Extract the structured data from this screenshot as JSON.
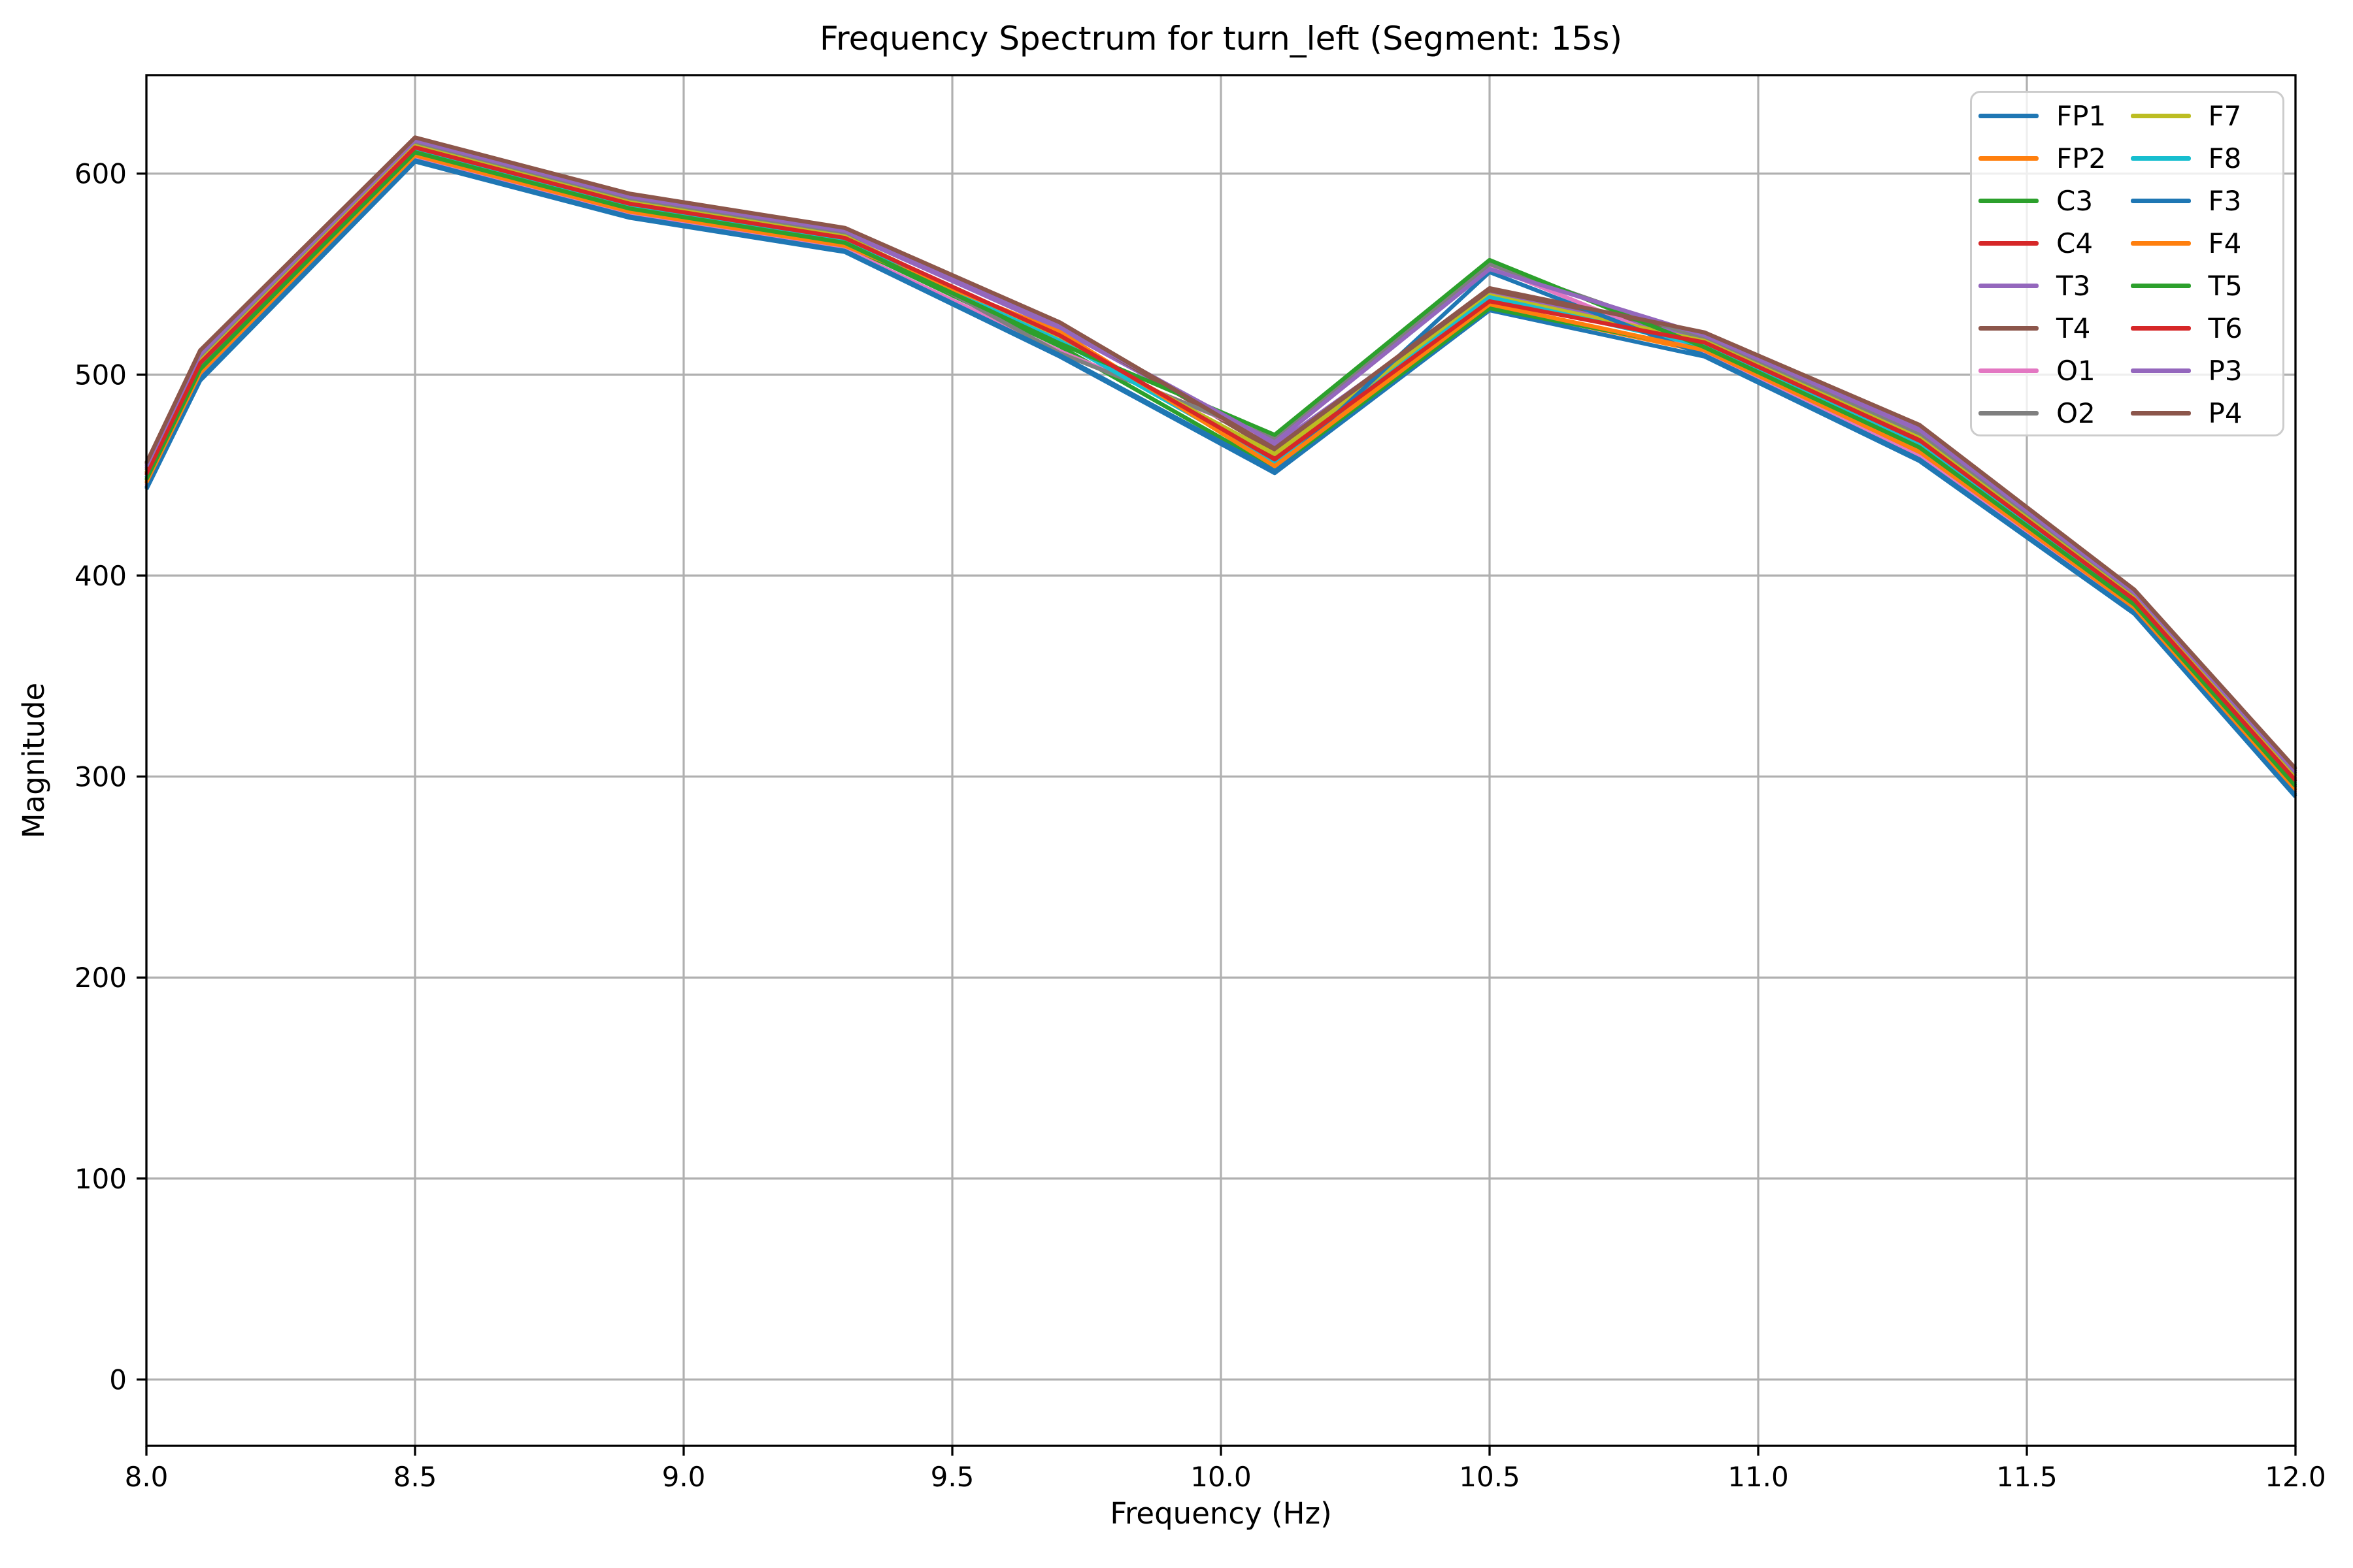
{
  "chart_data": {
    "type": "line",
    "title": "Frequency Spectrum for turn_left (Segment: 15s)",
    "xlabel": "Frequency (Hz)",
    "ylabel": "Magnitude",
    "xlim": [
      8.0,
      12.0
    ],
    "ylim": [
      -33,
      649
    ],
    "x_ticks": [
      8.0,
      8.5,
      9.0,
      9.5,
      10.0,
      10.5,
      11.0,
      11.5,
      12.0
    ],
    "x_tick_labels": [
      "8.0",
      "8.5",
      "9.0",
      "9.5",
      "10.0",
      "10.5",
      "11.0",
      "11.5",
      "12.0"
    ],
    "y_ticks": [
      0,
      100,
      200,
      300,
      400,
      500,
      600
    ],
    "y_tick_labels": [
      "0",
      "100",
      "200",
      "300",
      "400",
      "500",
      "600"
    ],
    "grid": true,
    "grid_color": "#b0b0b0",
    "spine_color": "#000000",
    "legend_position": "upper right",
    "legend_columns": 2,
    "x": [
      8.0,
      8.1,
      8.5,
      8.9,
      9.3,
      9.7,
      10.1,
      10.5,
      10.9,
      11.3,
      11.7,
      12.0
    ],
    "series": [
      {
        "name": "FP1",
        "color": "#1f77b4",
        "values": [
          443.0,
          497.0,
          606.0,
          578.0,
          561.0,
          509.0,
          451.0,
          532.0,
          509.0,
          457.0,
          381.0,
          290.0
        ]
      },
      {
        "name": "FP2",
        "color": "#ff7f0e",
        "values": [
          445.6,
          500.0,
          608.4,
          580.4,
          563.4,
          520.6,
          455.6,
          534.0,
          511.4,
          460.6,
          383.4,
          292.8
        ]
      },
      {
        "name": "C3",
        "color": "#2ca02c",
        "values": [
          447.2,
          501.8,
          609.8,
          581.8,
          564.8,
          514.1,
          453.3,
          533.0,
          512.8,
          462.8,
          384.8,
          294.5
        ]
      },
      {
        "name": "C4",
        "color": "#d62728",
        "values": [
          449.8,
          504.8,
          612.2,
          584.2,
          567.2,
          518.4,
          459.0,
          537.5,
          515.2,
          466.4,
          387.2,
          297.3
        ]
      },
      {
        "name": "T3",
        "color": "#9467bd",
        "values": [
          453.4,
          509.0,
          615.6,
          587.6,
          570.6,
          522.6,
          464.7,
          541.0,
          518.6,
          471.4,
          390.6,
          301.2
        ]
      },
      {
        "name": "T4",
        "color": "#8c564b",
        "values": [
          455.4,
          511.2,
          617.4,
          589.4,
          572.4,
          525.2,
          462.0,
          542.0,
          520.4,
          474.1,
          392.4,
          303.3
        ]
      },
      {
        "name": "O1",
        "color": "#e377c2",
        "values": [
          444.6,
          498.8,
          607.4,
          579.4,
          562.4,
          511.7,
          467.3,
          554.0,
          510.4,
          459.2,
          382.4,
          291.7
        ]
      },
      {
        "name": "O2",
        "color": "#7f7f7f",
        "values": [
          452.4,
          507.8,
          614.6,
          586.6,
          569.6,
          510.7,
          468.1,
          555.0,
          517.6,
          470.0,
          389.6,
          300.1
        ]
      },
      {
        "name": "F7",
        "color": "#bcbd22",
        "values": [
          451.3,
          506.6,
          613.7,
          585.7,
          568.7,
          517.5,
          460.5,
          539.5,
          516.7,
          468.5,
          388.7,
          299.0
        ]
      },
      {
        "name": "F8",
        "color": "#17becf",
        "values": [
          448.7,
          503.6,
          611.3,
          583.3,
          566.3,
          516.8,
          456.7,
          538.5,
          514.3,
          464.9,
          386.3,
          296.2
        ]
      },
      {
        "name": "F3",
        "color": "#1f77b4",
        "values": [
          443.7,
          497.8,
          606.6,
          578.6,
          561.6,
          509.7,
          452.1,
          551.0,
          509.6,
          457.9,
          381.6,
          290.7
        ]
      },
      {
        "name": "F4",
        "color": "#ff7f0e",
        "values": [
          446.4,
          500.9,
          609.1,
          581.1,
          564.1,
          521.2,
          454.4,
          535.0,
          512.1,
          461.7,
          384.1,
          293.6
        ]
      },
      {
        "name": "T5",
        "color": "#2ca02c",
        "values": [
          447.9,
          502.7,
          610.6,
          582.6,
          565.6,
          515.5,
          470.0,
          557.0,
          513.6,
          463.8,
          385.6,
          295.3
        ]
      },
      {
        "name": "T6",
        "color": "#d62728",
        "values": [
          450.5,
          505.7,
          613.0,
          585.0,
          568.0,
          519.5,
          457.8,
          536.5,
          516.0,
          467.4,
          388.0,
          298.1
        ]
      },
      {
        "name": "P3",
        "color": "#9467bd",
        "values": [
          454.4,
          510.2,
          616.6,
          588.6,
          571.6,
          524.0,
          466.2,
          552.5,
          519.6,
          472.8,
          391.6,
          302.3
        ]
      },
      {
        "name": "P4",
        "color": "#8c564b",
        "values": [
          456.0,
          512.0,
          618.0,
          590.0,
          573.0,
          526.0,
          463.2,
          543.0,
          521.0,
          475.0,
          393.0,
          304.0
        ]
      }
    ],
    "legend_entries": [
      {
        "label": "FP1",
        "color": "#1f77b4"
      },
      {
        "label": "FP2",
        "color": "#ff7f0e"
      },
      {
        "label": "C3",
        "color": "#2ca02c"
      },
      {
        "label": "C4",
        "color": "#d62728"
      },
      {
        "label": "T3",
        "color": "#9467bd"
      },
      {
        "label": "T4",
        "color": "#8c564b"
      },
      {
        "label": "O1",
        "color": "#e377c2"
      },
      {
        "label": "O2",
        "color": "#7f7f7f"
      },
      {
        "label": "F7",
        "color": "#bcbd22"
      },
      {
        "label": "F8",
        "color": "#17becf"
      },
      {
        "label": "F3",
        "color": "#1f77b4"
      },
      {
        "label": "F4",
        "color": "#ff7f0e"
      },
      {
        "label": "T5",
        "color": "#2ca02c"
      },
      {
        "label": "T6",
        "color": "#d62728"
      },
      {
        "label": "P3",
        "color": "#9467bd"
      },
      {
        "label": "P4",
        "color": "#8c564b"
      }
    ]
  }
}
